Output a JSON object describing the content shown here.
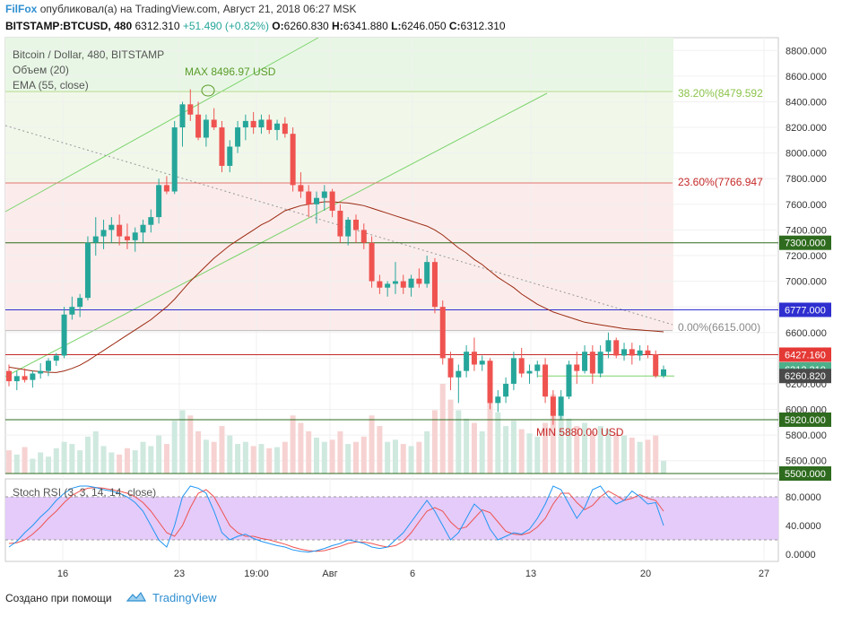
{
  "header": {
    "author": "FilFox",
    "published_text": "опубликовал(а) на TradingView.com, Август 21, 2018 06:27 MSK",
    "symbol": "BITSTAMP:BTCUSD, 480",
    "last": "6312.310",
    "change": "+51.490 (+0.82%)",
    "o_label": "O:",
    "o": "6260.830",
    "h_label": "H:",
    "h": "6341.880",
    "l_label": "L:",
    "l": "6246.050",
    "c_label": "C:",
    "c": "6312.310"
  },
  "legend": {
    "line1": "Bitcoin / Dollar, 480, BITSTAMP",
    "line2": "Объем (20)",
    "line3": "EMA (55, close)"
  },
  "rsi_label": "Stoch RSI (3, 3, 14, 14, close)",
  "footer": {
    "made_with": "Создано при помощи",
    "brand": "TradingView"
  },
  "annotations": {
    "max": "MAX 8496.97 USD",
    "min": "MIN 5880.00 USD",
    "fib_382": "38.20%(8479.592",
    "fib_236": "23.60%(7766.947",
    "fib_0": "0.00%(6615.000)"
  },
  "price_axis": {
    "ticks": [
      "8800.000",
      "8600.000",
      "8400.000",
      "8200.000",
      "8000.000",
      "7800.000",
      "7600.000",
      "7400.000",
      "7200.000",
      "7000.000",
      "6800.000",
      "6600.000",
      "6400.000",
      "6200.000",
      "6000.000",
      "5800.000",
      "5600.000"
    ],
    "tick_values": [
      8800,
      8600,
      8400,
      8200,
      8000,
      7800,
      7600,
      7400,
      7200,
      7000,
      6800,
      6600,
      6400,
      6200,
      6000,
      5800,
      5600
    ],
    "badges": [
      {
        "label": "7300.000",
        "value": 7300,
        "color": "#2e6b1e"
      },
      {
        "label": "6777.000",
        "value": 6777,
        "color": "#2f2fd0"
      },
      {
        "label": "6427.160",
        "value": 6427.16,
        "color": "#e53935"
      },
      {
        "label": "6312.310",
        "value": 6312.31,
        "color": "#4caf8a"
      },
      {
        "label": "6260.820",
        "value": 6260.82,
        "color": "#4a4a4a"
      },
      {
        "label": "5920.000",
        "value": 5920,
        "color": "#2e6b1e"
      },
      {
        "label": "5500.000",
        "value": 5500,
        "color": "#2e6b1e"
      }
    ]
  },
  "rsi_axis": {
    "ticks": [
      "80.0000",
      "40.0000",
      "0.0000"
    ],
    "tick_values": [
      80,
      40,
      0
    ]
  },
  "time_axis": {
    "ticks": [
      "16",
      "23",
      "19:00",
      "Авг",
      "6",
      "13",
      "20",
      "27"
    ]
  },
  "colors": {
    "up": "#26a69a",
    "down": "#ef5350",
    "ema": "#9c2a12",
    "trend": "#7bd36b",
    "level_green": "#2e6b1e",
    "level_blue": "#2f2fd0",
    "level_red": "#c62828",
    "rsi_k": "#2196f3",
    "rsi_d": "#ef5350",
    "rsi_band": "#e4cbf9"
  },
  "chart_data": {
    "type": "candlestick",
    "symbol": "BITSTAMP:BTCUSD",
    "interval": "480",
    "ylim": [
      5500,
      8900
    ],
    "levels": [
      8479.592,
      7766.947,
      7300,
      6777,
      6615,
      6427.16,
      5920,
      5500
    ],
    "max": 8496.97,
    "min": 5880.0,
    "candles": [
      [
        6300,
        6350,
        6180,
        6220
      ],
      [
        6220,
        6300,
        6150,
        6260
      ],
      [
        6260,
        6320,
        6210,
        6230
      ],
      [
        6230,
        6300,
        6170,
        6280
      ],
      [
        6280,
        6360,
        6240,
        6300
      ],
      [
        6300,
        6400,
        6260,
        6380
      ],
      [
        6380,
        6440,
        6340,
        6420
      ],
      [
        6420,
        6800,
        6400,
        6740
      ],
      [
        6740,
        6880,
        6700,
        6800
      ],
      [
        6800,
        6900,
        6720,
        6870
      ],
      [
        6870,
        7350,
        6850,
        7300
      ],
      [
        7300,
        7500,
        7200,
        7350
      ],
      [
        7350,
        7480,
        7250,
        7400
      ],
      [
        7400,
        7500,
        7300,
        7440
      ],
      [
        7440,
        7520,
        7280,
        7350
      ],
      [
        7350,
        7450,
        7250,
        7320
      ],
      [
        7320,
        7420,
        7230,
        7380
      ],
      [
        7380,
        7480,
        7300,
        7440
      ],
      [
        7440,
        7560,
        7380,
        7500
      ],
      [
        7500,
        7800,
        7450,
        7750
      ],
      [
        7750,
        7820,
        7680,
        7700
      ],
      [
        7700,
        8250,
        7680,
        8200
      ],
      [
        8200,
        8400,
        8050,
        8380
      ],
      [
        8380,
        8497,
        8250,
        8300
      ],
      [
        8300,
        8400,
        8100,
        8120
      ],
      [
        8120,
        8300,
        8050,
        8260
      ],
      [
        8260,
        8350,
        8180,
        8200
      ],
      [
        8200,
        8250,
        7850,
        7900
      ],
      [
        7900,
        8100,
        7850,
        8050
      ],
      [
        8050,
        8250,
        8000,
        8200
      ],
      [
        8200,
        8300,
        8100,
        8250
      ],
      [
        8250,
        8320,
        8150,
        8200
      ],
      [
        8200,
        8300,
        8150,
        8260
      ],
      [
        8260,
        8300,
        8150,
        8180
      ],
      [
        8180,
        8260,
        8100,
        8230
      ],
      [
        8230,
        8280,
        8120,
        8150
      ],
      [
        8150,
        8200,
        7700,
        7750
      ],
      [
        7750,
        7850,
        7650,
        7700
      ],
      [
        7700,
        7750,
        7500,
        7600
      ],
      [
        7600,
        7700,
        7450,
        7650
      ],
      [
        7650,
        7750,
        7550,
        7700
      ],
      [
        7700,
        7720,
        7500,
        7550
      ],
      [
        7550,
        7600,
        7300,
        7350
      ],
      [
        7350,
        7500,
        7280,
        7480
      ],
      [
        7480,
        7520,
        7300,
        7400
      ],
      [
        7400,
        7450,
        7250,
        7300
      ],
      [
        7300,
        7350,
        6950,
        7000
      ],
      [
        7000,
        7050,
        6900,
        6950
      ],
      [
        6950,
        7000,
        6880,
        6980
      ],
      [
        6980,
        7150,
        6900,
        7000
      ],
      [
        7000,
        7050,
        6900,
        6950
      ],
      [
        6950,
        7050,
        6880,
        7020
      ],
      [
        7020,
        7100,
        6950,
        6980
      ],
      [
        6980,
        7200,
        6950,
        7150
      ],
      [
        7150,
        7180,
        6750,
        6800
      ],
      [
        6800,
        6850,
        6350,
        6400
      ],
      [
        6400,
        6450,
        6150,
        6250
      ],
      [
        6250,
        6350,
        6050,
        6300
      ],
      [
        6300,
        6500,
        6250,
        6450
      ],
      [
        6450,
        6560,
        6300,
        6350
      ],
      [
        6350,
        6420,
        6300,
        6380
      ],
      [
        6380,
        6400,
        6000,
        6050
      ],
      [
        6050,
        6150,
        5980,
        6100
      ],
      [
        6100,
        6250,
        6050,
        6200
      ],
      [
        6200,
        6450,
        6150,
        6400
      ],
      [
        6400,
        6480,
        6250,
        6280
      ],
      [
        6280,
        6350,
        6200,
        6300
      ],
      [
        6300,
        6380,
        6250,
        6350
      ],
      [
        6350,
        6400,
        6050,
        6100
      ],
      [
        6100,
        6150,
        5880,
        5950
      ],
      [
        5950,
        6150,
        5920,
        6100
      ],
      [
        6100,
        6380,
        6080,
        6350
      ],
      [
        6350,
        6450,
        6200,
        6300
      ],
      [
        6300,
        6500,
        6280,
        6450
      ],
      [
        6450,
        6500,
        6200,
        6280
      ],
      [
        6280,
        6500,
        6250,
        6450
      ],
      [
        6450,
        6600,
        6400,
        6540
      ],
      [
        6540,
        6560,
        6400,
        6420
      ],
      [
        6420,
        6520,
        6380,
        6470
      ],
      [
        6470,
        6520,
        6350,
        6420
      ],
      [
        6420,
        6500,
        6380,
        6460
      ],
      [
        6460,
        6500,
        6400,
        6430
      ],
      [
        6430,
        6460,
        6246,
        6260
      ],
      [
        6260.83,
        6341.88,
        6246.05,
        6312.31
      ]
    ],
    "volume": [
      22,
      18,
      25,
      14,
      20,
      16,
      24,
      30,
      28,
      22,
      35,
      40,
      26,
      20,
      18,
      24,
      22,
      30,
      26,
      36,
      28,
      50,
      60,
      55,
      40,
      32,
      30,
      45,
      36,
      28,
      30,
      26,
      28,
      24,
      25,
      30,
      55,
      48,
      40,
      34,
      30,
      32,
      40,
      28,
      30,
      35,
      55,
      45,
      30,
      32,
      28,
      26,
      30,
      40,
      60,
      85,
      70,
      60,
      52,
      48,
      40,
      70,
      58,
      45,
      50,
      42,
      38,
      35,
      48,
      75,
      60,
      52,
      45,
      48,
      40,
      45,
      42,
      38,
      36,
      34,
      30,
      32,
      36,
      12
    ],
    "ema55": [
      6330,
      6320,
      6310,
      6300,
      6295,
      6290,
      6288,
      6300,
      6320,
      6345,
      6380,
      6420,
      6460,
      6500,
      6540,
      6580,
      6620,
      6660,
      6700,
      6750,
      6800,
      6860,
      6930,
      7000,
      7060,
      7120,
      7180,
      7230,
      7280,
      7320,
      7360,
      7400,
      7440,
      7470,
      7510,
      7550,
      7570,
      7590,
      7600,
      7610,
      7620,
      7620,
      7615,
      7610,
      7600,
      7590,
      7570,
      7550,
      7530,
      7510,
      7490,
      7470,
      7450,
      7430,
      7400,
      7360,
      7310,
      7260,
      7220,
      7170,
      7130,
      7080,
      7030,
      6990,
      6950,
      6900,
      6860,
      6820,
      6790,
      6760,
      6740,
      6720,
      6700,
      6680,
      6670,
      6660,
      6650,
      6640,
      6630,
      6625,
      6620,
      6615,
      6610,
      6605
    ],
    "stoch_k": [
      10,
      18,
      30,
      40,
      52,
      62,
      75,
      85,
      92,
      95,
      95,
      93,
      90,
      88,
      85,
      80,
      72,
      60,
      40,
      20,
      10,
      40,
      80,
      95,
      92,
      85,
      60,
      30,
      20,
      25,
      28,
      22,
      18,
      15,
      12,
      10,
      6,
      4,
      3,
      5,
      8,
      12,
      15,
      20,
      18,
      15,
      10,
      8,
      10,
      20,
      30,
      45,
      60,
      75,
      60,
      40,
      20,
      30,
      50,
      70,
      60,
      35,
      20,
      25,
      30,
      28,
      35,
      50,
      70,
      95,
      90,
      70,
      50,
      65,
      90,
      95,
      80,
      70,
      75,
      88,
      80,
      70,
      72,
      40
    ],
    "stoch_d": [
      15,
      16,
      20,
      28,
      38,
      50,
      60,
      72,
      82,
      88,
      92,
      93,
      92,
      90,
      88,
      85,
      80,
      72,
      60,
      45,
      30,
      25,
      40,
      65,
      85,
      90,
      80,
      60,
      40,
      30,
      25,
      25,
      22,
      20,
      17,
      14,
      10,
      7,
      5,
      4,
      5,
      8,
      11,
      15,
      17,
      17,
      15,
      12,
      10,
      12,
      18,
      30,
      45,
      60,
      65,
      60,
      45,
      35,
      38,
      50,
      62,
      58,
      45,
      32,
      28,
      27,
      30,
      38,
      50,
      70,
      85,
      85,
      72,
      62,
      68,
      80,
      88,
      82,
      75,
      78,
      83,
      78,
      75,
      60
    ]
  }
}
